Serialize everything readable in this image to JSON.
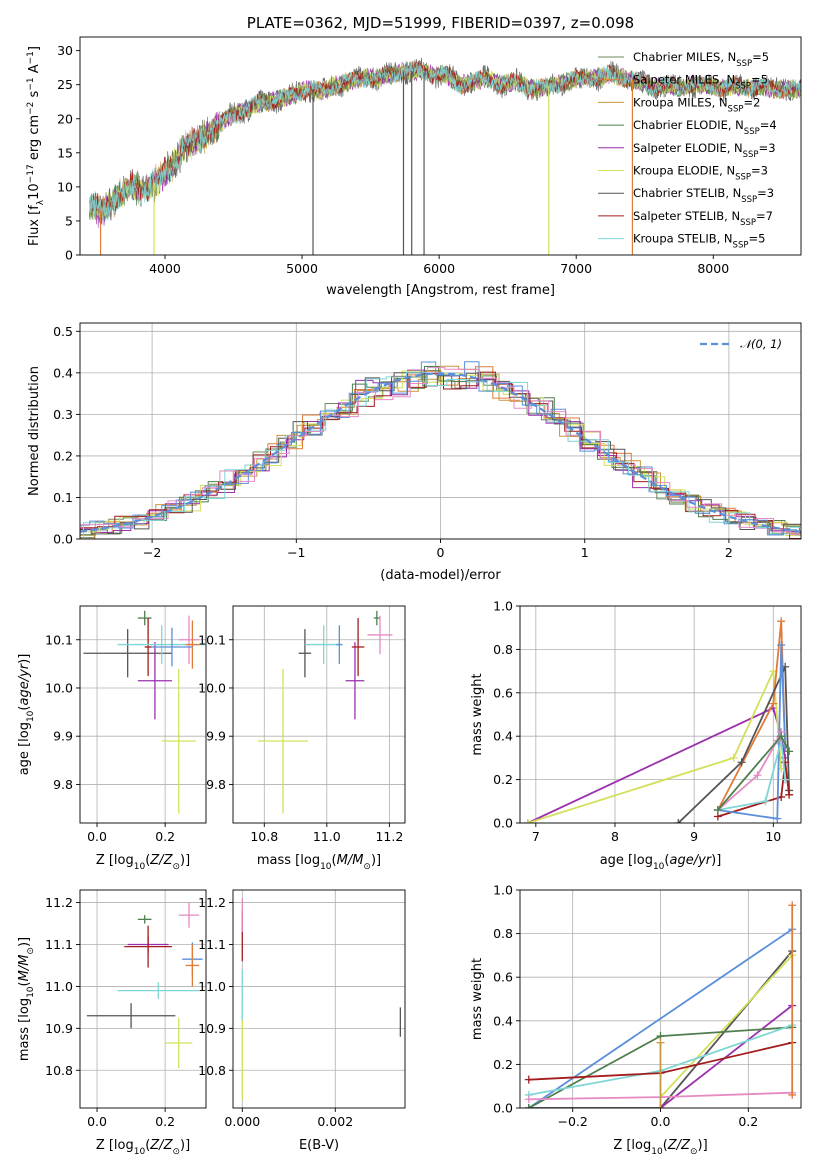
{
  "colors": {
    "Chabrier MILES": "#6b8e5a",
    "Salpeter MILES": "#e07b39",
    "Kroupa MILES": "#c8963e",
    "Chabrier ELODIE": "#4f7f4f",
    "Salpeter ELODIE": "#9b2fae",
    "Kroupa ELODIE": "#d4e05a",
    "Chabrier STELIB": "#555555",
    "Salpeter STELIB": "#a31d1d",
    "Kroupa STELIB": "#7fd6d6",
    "blue": "#5b8fd9",
    "pink": "#e68ac4"
  },
  "chart_data": [
    {
      "type": "line",
      "title": "PLATE=0362, MJD=51999, FIBERID=0397, z=0.098",
      "xlabel": "wavelength [Angstrom, rest frame]",
      "ylabel": "Flux [fλ10⁻¹⁷ erg cm⁻² s⁻¹ A⁻¹]",
      "xlim": [
        3380,
        8640
      ],
      "ylim": [
        0,
        32
      ],
      "xticks": [
        "4000",
        "5000",
        "6000",
        "7000",
        "8000"
      ],
      "yticks": [
        "0",
        "5",
        "10",
        "15",
        "20",
        "25",
        "30"
      ],
      "legend_position": "upper-right",
      "legend": [
        {
          "label": "Chabrier MILES, N",
          "sub": "SSP",
          "tail": "=5",
          "key": "Chabrier MILES"
        },
        {
          "label": "Salpeter MILES, N",
          "sub": "SSP",
          "tail": "=5",
          "key": "Salpeter MILES"
        },
        {
          "label": "Kroupa MILES, N",
          "sub": "SSP",
          "tail": "=2",
          "key": "Kroupa MILES"
        },
        {
          "label": "Chabrier ELODIE, N",
          "sub": "SSP",
          "tail": "=4",
          "key": "Chabrier ELODIE"
        },
        {
          "label": "Salpeter ELODIE, N",
          "sub": "SSP",
          "tail": "=3",
          "key": "Salpeter ELODIE"
        },
        {
          "label": "Kroupa ELODIE, N",
          "sub": "SSP",
          "tail": "=3",
          "key": "Kroupa ELODIE"
        },
        {
          "label": "Chabrier STELIB, N",
          "sub": "SSP",
          "tail": "=3",
          "key": "Chabrier STELIB"
        },
        {
          "label": "Salpeter STELIB, N",
          "sub": "SSP",
          "tail": "=7",
          "key": "Salpeter STELIB"
        },
        {
          "label": "Kroupa STELIB, N",
          "sub": "SSP",
          "tail": "=5",
          "key": "Kroupa STELIB"
        }
      ],
      "continuum": [
        [
          3450,
          7
        ],
        [
          3550,
          6.5
        ],
        [
          3650,
          8.5
        ],
        [
          3750,
          10
        ],
        [
          3850,
          9.5
        ],
        [
          3950,
          11
        ],
        [
          4050,
          13
        ],
        [
          4150,
          16
        ],
        [
          4250,
          17
        ],
        [
          4350,
          18.5
        ],
        [
          4450,
          20
        ],
        [
          4550,
          21
        ],
        [
          4650,
          22
        ],
        [
          4750,
          22.5
        ],
        [
          4850,
          23
        ],
        [
          4950,
          23.5
        ],
        [
          5050,
          24.5
        ],
        [
          5150,
          24
        ],
        [
          5250,
          25
        ],
        [
          5350,
          25.5
        ],
        [
          5450,
          26
        ],
        [
          5550,
          26
        ],
        [
          5650,
          26.5
        ],
        [
          5750,
          27
        ],
        [
          5850,
          27
        ],
        [
          5950,
          26.5
        ],
        [
          6050,
          26.5
        ],
        [
          6150,
          25
        ],
        [
          6250,
          25.5
        ],
        [
          6350,
          26
        ],
        [
          6450,
          25
        ],
        [
          6550,
          25.5
        ],
        [
          6650,
          24.5
        ],
        [
          6750,
          24.5
        ],
        [
          6850,
          25
        ],
        [
          6950,
          25.5
        ],
        [
          7050,
          26
        ],
        [
          7150,
          26
        ],
        [
          7250,
          26.5
        ],
        [
          7350,
          26
        ],
        [
          7450,
          25.5
        ],
        [
          7550,
          24.5
        ],
        [
          7650,
          25
        ],
        [
          7750,
          24.5
        ],
        [
          7850,
          25
        ],
        [
          7950,
          25
        ],
        [
          8050,
          24.5
        ],
        [
          8150,
          24.8
        ],
        [
          8250,
          24.5
        ],
        [
          8350,
          24.7
        ],
        [
          8450,
          24.3
        ],
        [
          8550,
          24.5
        ],
        [
          8640,
          24.2
        ]
      ],
      "spikes": [
        [
          5080,
          "Chabrier STELIB"
        ],
        [
          5740,
          "Chabrier STELIB"
        ],
        [
          5800,
          "Chabrier STELIB"
        ],
        [
          5890,
          "Chabrier STELIB"
        ],
        [
          6800,
          "Kroupa ELODIE"
        ],
        [
          7410,
          "Salpeter MILES"
        ],
        [
          3920,
          "Kroupa ELODIE"
        ],
        [
          3530,
          "Salpeter MILES"
        ]
      ]
    },
    {
      "type": "line",
      "xlabel": "(data-model)/error",
      "ylabel": "Normed distribution",
      "xlim": [
        -2.5,
        2.5
      ],
      "ylim": [
        0,
        0.52
      ],
      "xticks": [
        "−2",
        "−1",
        "0",
        "1",
        "2"
      ],
      "yticks": [
        "0.0",
        "0.1",
        "0.2",
        "0.3",
        "0.4",
        "0.5"
      ],
      "legend": "N(0,1)",
      "legend_position": "upper-right"
    },
    {
      "type": "scatter",
      "xlabel": "Z [log10(Z/Z⊙)]",
      "ylabel": "age  [log10(age/yr)]",
      "xlim": [
        -0.05,
        0.32
      ],
      "ylim": [
        9.72,
        10.17
      ],
      "xticks": [
        "0.0",
        "0.2"
      ],
      "yticks": [
        "9.8",
        "9.9",
        "10.0",
        "10.1"
      ],
      "points": [
        {
          "x": 0.14,
          "y": 10.145,
          "xerr": 0.02,
          "yerr": 0.015,
          "key": "Chabrier ELODIE"
        },
        {
          "x": 0.09,
          "y": 10.072,
          "xerr": 0.13,
          "yerr": 0.05,
          "key": "Chabrier STELIB"
        },
        {
          "x": 0.17,
          "y": 10.015,
          "xerr": 0.05,
          "yerr": 0.08,
          "key": "Salpeter ELODIE"
        },
        {
          "x": 0.15,
          "y": 10.085,
          "xerr": 0.01,
          "yerr": 0.06,
          "key": "Salpeter STELIB"
        },
        {
          "x": 0.24,
          "y": 9.89,
          "xerr": 0.05,
          "yerr": 0.15,
          "key": "Kroupa ELODIE"
        },
        {
          "x": 0.19,
          "y": 10.09,
          "xerr": 0.13,
          "yerr": 0.04,
          "key": "Kroupa STELIB"
        },
        {
          "x": 0.27,
          "y": 10.1,
          "xerr": 0.03,
          "yerr": 0.05,
          "key": "pink"
        },
        {
          "x": 0.28,
          "y": 10.09,
          "xerr": 0.02,
          "yerr": 0.05,
          "key": "Salpeter MILES"
        },
        {
          "x": 0.22,
          "y": 10.085,
          "xerr": 0.06,
          "yerr": 0.04,
          "key": "blue"
        }
      ]
    },
    {
      "type": "scatter",
      "xlabel": "mass [log10(M/M⊙)]",
      "ylabel": "",
      "xlim": [
        10.7,
        11.25
      ],
      "ylim": [
        9.72,
        10.17
      ],
      "xticks": [
        "10.8",
        "11.0",
        "11.2"
      ],
      "yticks": [
        "9.8",
        "9.9",
        "10.0",
        "10.1"
      ],
      "points": [
        {
          "x": 11.16,
          "y": 10.145,
          "xerr": 0.01,
          "yerr": 0.015,
          "key": "Chabrier ELODIE"
        },
        {
          "x": 10.93,
          "y": 10.072,
          "xerr": 0.02,
          "yerr": 0.05,
          "key": "Chabrier STELIB"
        },
        {
          "x": 11.09,
          "y": 10.015,
          "xerr": 0.03,
          "yerr": 0.08,
          "key": "Salpeter ELODIE"
        },
        {
          "x": 11.1,
          "y": 10.085,
          "xerr": 0.02,
          "yerr": 0.06,
          "key": "Salpeter STELIB"
        },
        {
          "x": 10.86,
          "y": 9.89,
          "xerr": 0.08,
          "yerr": 0.15,
          "key": "Kroupa ELODIE"
        },
        {
          "x": 10.99,
          "y": 10.09,
          "xerr": 0.06,
          "yerr": 0.04,
          "key": "Kroupa STELIB"
        },
        {
          "x": 11.17,
          "y": 10.11,
          "xerr": 0.04,
          "yerr": 0.04,
          "key": "pink"
        },
        {
          "x": 11.04,
          "y": 10.09,
          "xerr": 0.01,
          "yerr": 0.04,
          "key": "blue"
        }
      ]
    },
    {
      "type": "line",
      "xlabel": "age  [log10(age/yr)]",
      "ylabel": "mass weight",
      "xlim": [
        6.8,
        10.35
      ],
      "ylim": [
        0,
        1.0
      ],
      "xticks": [
        "7",
        "8",
        "9",
        "10"
      ],
      "yticks": [
        "0.0",
        "0.2",
        "0.4",
        "0.6",
        "0.8",
        "1.0"
      ],
      "series": [
        {
          "key": "Salpeter ELODIE",
          "x": [
            6.9,
            10.0,
            10.1,
            10.15
          ],
          "y": [
            0.0,
            0.53,
            0.4,
            0.3
          ]
        },
        {
          "key": "Kroupa ELODIE",
          "x": [
            6.9,
            9.5,
            10.0,
            10.1
          ],
          "y": [
            0.0,
            0.3,
            0.7,
            0.25
          ]
        },
        {
          "key": "Salpeter MILES",
          "x": [
            9.3,
            10.0,
            10.1,
            10.15
          ],
          "y": [
            0.06,
            0.55,
            0.93,
            0.35
          ]
        },
        {
          "key": "Chabrier STELIB",
          "x": [
            8.8,
            9.6,
            10.15,
            10.2
          ],
          "y": [
            0.0,
            0.28,
            0.72,
            0.15
          ]
        },
        {
          "key": "Salpeter STELIB",
          "x": [
            9.3,
            10.1,
            10.15,
            10.2
          ],
          "y": [
            0.03,
            0.12,
            0.28,
            0.13
          ]
        },
        {
          "key": "blue",
          "x": [
            9.3,
            10.05,
            10.1,
            10.15
          ],
          "y": [
            0.06,
            0.02,
            0.82,
            0.35
          ]
        },
        {
          "key": "Kroupa STELIB",
          "x": [
            9.3,
            9.9,
            10.1,
            10.15
          ],
          "y": [
            0.06,
            0.1,
            0.38,
            0.2
          ]
        },
        {
          "key": "pink",
          "x": [
            9.3,
            9.8,
            10.05,
            10.1
          ],
          "y": [
            0.06,
            0.22,
            0.38,
            0.42
          ]
        },
        {
          "key": "Chabrier ELODIE",
          "x": [
            9.3,
            10.1,
            10.2
          ],
          "y": [
            0.06,
            0.4,
            0.33
          ]
        }
      ]
    },
    {
      "type": "scatter",
      "xlabel": "Z [log10(Z/Z⊙)]",
      "ylabel": "mass [log10(M/M⊙)]",
      "xlim": [
        -0.05,
        0.32
      ],
      "ylim": [
        10.71,
        11.23
      ],
      "xticks": [
        "0.0",
        "0.2"
      ],
      "yticks": [
        "10.8",
        "10.9",
        "11.0",
        "11.1",
        "11.2"
      ],
      "points": [
        {
          "x": 0.14,
          "y": 11.16,
          "xerr": 0.02,
          "yerr": 0.01,
          "key": "Chabrier ELODIE"
        },
        {
          "x": 0.1,
          "y": 10.93,
          "xerr": 0.13,
          "yerr": 0.03,
          "key": "Chabrier STELIB"
        },
        {
          "x": 0.15,
          "y": 11.1,
          "xerr": 0.06,
          "yerr": 0.02,
          "key": "Salpeter ELODIE"
        },
        {
          "x": 0.15,
          "y": 11.095,
          "xerr": 0.07,
          "yerr": 0.05,
          "key": "Salpeter STELIB"
        },
        {
          "x": 0.24,
          "y": 10.865,
          "xerr": 0.04,
          "yerr": 0.06,
          "key": "Kroupa ELODIE"
        },
        {
          "x": 0.18,
          "y": 10.99,
          "xerr": 0.12,
          "yerr": 0.02,
          "key": "Kroupa STELIB"
        },
        {
          "x": 0.27,
          "y": 11.17,
          "xerr": 0.03,
          "yerr": 0.03,
          "key": "pink"
        },
        {
          "x": 0.28,
          "y": 11.065,
          "xerr": 0.03,
          "yerr": 0.04,
          "key": "blue"
        },
        {
          "x": 0.28,
          "y": 11.05,
          "xerr": 0.02,
          "yerr": 0.05,
          "key": "Salpeter MILES"
        }
      ]
    },
    {
      "type": "scatter",
      "xlabel": "E(B-V)",
      "ylabel": "",
      "xlim": [
        -0.0002,
        0.0035
      ],
      "ylim": [
        10.71,
        11.23
      ],
      "xticks": [
        "0.000",
        "0.002"
      ],
      "yticks": [
        "10.8",
        "10.9",
        "11.0",
        "11.1",
        "11.2"
      ],
      "points": [
        {
          "x": 0.0,
          "y": 11.12,
          "xerr": 0,
          "yerr": 0.06,
          "key": "Salpeter STELIB"
        },
        {
          "x": 0.0,
          "y": 10.85,
          "xerr": 0,
          "yerr": 0.12,
          "key": "Kroupa ELODIE"
        },
        {
          "x": 0.0,
          "y": 10.98,
          "xerr": 0,
          "yerr": 0.06,
          "key": "Kroupa STELIB"
        },
        {
          "x": 0.0,
          "y": 11.17,
          "xerr": 0,
          "yerr": 0.04,
          "key": "pink"
        },
        {
          "x": 0.0034,
          "y": 10.915,
          "xerr": 0,
          "yerr": 0.035,
          "key": "Chabrier STELIB"
        }
      ]
    },
    {
      "type": "line",
      "xlabel": "Z [log10(Z/Z⊙)]",
      "ylabel": "mass weight",
      "xlim": [
        -0.32,
        0.32
      ],
      "ylim": [
        0,
        1.0
      ],
      "xticks": [
        "−0.2",
        "0.0",
        "0.2"
      ],
      "yticks": [
        "0.0",
        "0.2",
        "0.4",
        "0.6",
        "0.8",
        "1.0"
      ],
      "series": [
        {
          "key": "blue",
          "x": [
            -0.3,
            0.3
          ],
          "y": [
            0.0,
            0.82
          ]
        },
        {
          "key": "Chabrier STELIB",
          "x": [
            -0.3,
            0.0,
            0.3
          ],
          "y": [
            0.0,
            0.0,
            0.72
          ]
        },
        {
          "key": "Kroupa ELODIE",
          "x": [
            0.0,
            0.3
          ],
          "y": [
            0.05,
            0.7
          ]
        },
        {
          "key": "Salpeter ELODIE",
          "x": [
            0.0,
            0.3
          ],
          "y": [
            0.0,
            0.47
          ]
        },
        {
          "key": "Chabrier ELODIE",
          "x": [
            -0.3,
            0.0,
            0.3
          ],
          "y": [
            0.0,
            0.33,
            0.37
          ]
        },
        {
          "key": "Kroupa STELIB",
          "x": [
            -0.3,
            0.0,
            0.3
          ],
          "y": [
            0.06,
            0.17,
            0.38
          ]
        },
        {
          "key": "Salpeter STELIB",
          "x": [
            -0.3,
            0.0,
            0.3
          ],
          "y": [
            0.13,
            0.16,
            0.3
          ]
        },
        {
          "key": "pink",
          "x": [
            -0.3,
            0.0,
            0.3
          ],
          "y": [
            0.04,
            0.05,
            0.07
          ]
        },
        {
          "key": "Salpeter MILES",
          "x": [
            0.3,
            0.3
          ],
          "y": [
            0.06,
            0.93
          ]
        },
        {
          "key": "Kroupa MILES",
          "x": [
            0.0,
            0.0
          ],
          "y": [
            0.0,
            0.3
          ]
        }
      ]
    }
  ]
}
